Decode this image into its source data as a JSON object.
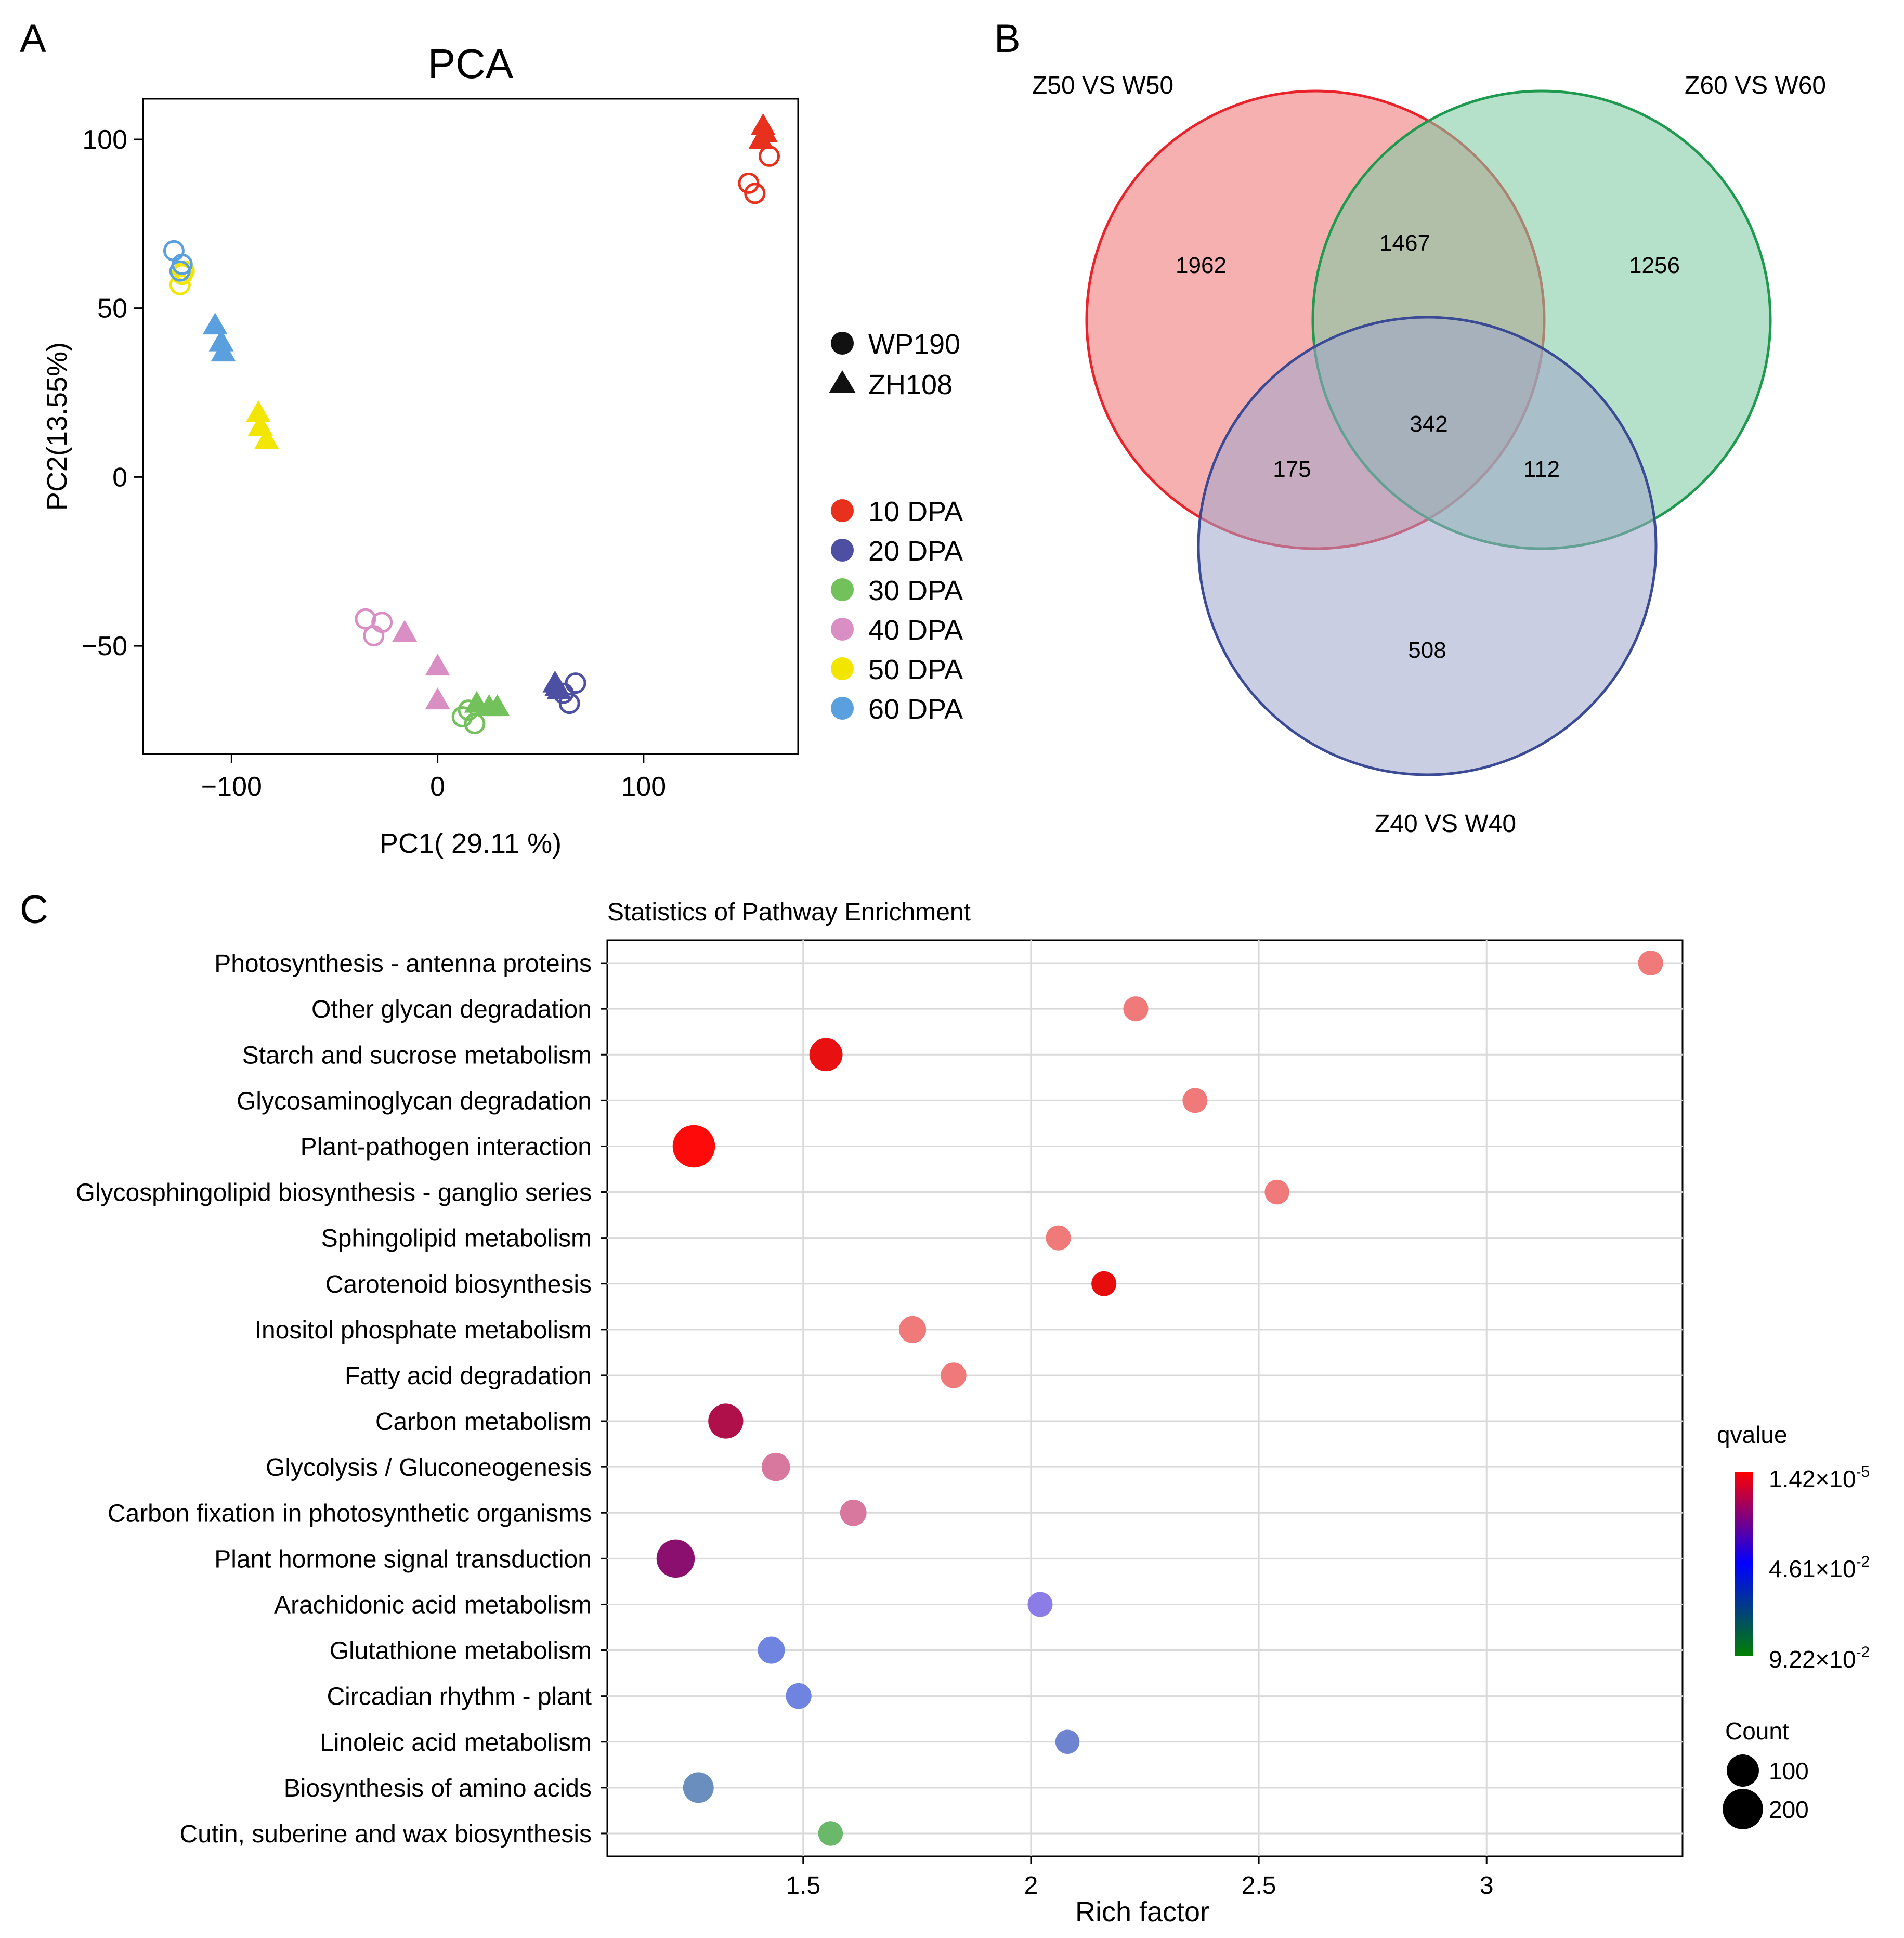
{
  "panels": {
    "a": "A",
    "b": "B",
    "c": "C"
  },
  "chart_data": [
    {
      "type": "scatter",
      "title": "PCA",
      "xlabel": "PC1( 29.11 %)",
      "ylabel": "PC2(13.55%)",
      "xlim": [
        -143,
        175
      ],
      "ylim": [
        -82,
        112
      ],
      "xticks": [
        -100,
        0,
        100
      ],
      "xtick_labels": [
        "−100",
        "0",
        "100"
      ],
      "yticks": [
        100,
        50,
        0,
        -50
      ],
      "ytick_labels": [
        "100",
        "50",
        "0",
        "−50"
      ],
      "shape_legend": [
        {
          "label": "WP190",
          "shape": "circle"
        },
        {
          "label": "ZH108",
          "shape": "triangle"
        }
      ],
      "color_legend": [
        {
          "label": "10 DPA",
          "color": "#e8311d"
        },
        {
          "label": "20 DPA",
          "color": "#4d4fa3"
        },
        {
          "label": "30 DPA",
          "color": "#72c15a"
        },
        {
          "label": "40 DPA",
          "color": "#d98fc4"
        },
        {
          "label": "50 DPA",
          "color": "#f2e600"
        },
        {
          "label": "60 DPA",
          "color": "#5a9fde"
        }
      ],
      "points": [
        {
          "x": 158,
          "y": 104,
          "group": "10 DPA",
          "shape": "triangle"
        },
        {
          "x": 157,
          "y": 100,
          "group": "10 DPA",
          "shape": "triangle"
        },
        {
          "x": 159,
          "y": 102,
          "group": "10 DPA",
          "shape": "triangle"
        },
        {
          "x": 161,
          "y": 95,
          "group": "10 DPA",
          "shape": "circle"
        },
        {
          "x": 151,
          "y": 87,
          "group": "10 DPA",
          "shape": "circle"
        },
        {
          "x": 154,
          "y": 84,
          "group": "10 DPA",
          "shape": "circle"
        },
        {
          "x": 57,
          "y": -61,
          "group": "20 DPA",
          "shape": "triangle"
        },
        {
          "x": 59,
          "y": -63,
          "group": "20 DPA",
          "shape": "triangle"
        },
        {
          "x": 58,
          "y": -62,
          "group": "20 DPA",
          "shape": "triangle"
        },
        {
          "x": 67,
          "y": -61,
          "group": "20 DPA",
          "shape": "circle"
        },
        {
          "x": 64,
          "y": -67,
          "group": "20 DPA",
          "shape": "circle"
        },
        {
          "x": 61,
          "y": -64,
          "group": "20 DPA",
          "shape": "circle"
        },
        {
          "x": 19,
          "y": -67,
          "group": "30 DPA",
          "shape": "triangle"
        },
        {
          "x": 25,
          "y": -68,
          "group": "30 DPA",
          "shape": "triangle"
        },
        {
          "x": 29,
          "y": -68,
          "group": "30 DPA",
          "shape": "triangle"
        },
        {
          "x": 15,
          "y": -69,
          "group": "30 DPA",
          "shape": "circle"
        },
        {
          "x": 12,
          "y": -71,
          "group": "30 DPA",
          "shape": "circle"
        },
        {
          "x": 18,
          "y": -73,
          "group": "30 DPA",
          "shape": "circle"
        },
        {
          "x": -16,
          "y": -46,
          "group": "40 DPA",
          "shape": "triangle"
        },
        {
          "x": 0,
          "y": -56,
          "group": "40 DPA",
          "shape": "triangle"
        },
        {
          "x": 0,
          "y": -66,
          "group": "40 DPA",
          "shape": "triangle"
        },
        {
          "x": -35,
          "y": -42,
          "group": "40 DPA",
          "shape": "circle"
        },
        {
          "x": -27,
          "y": -43,
          "group": "40 DPA",
          "shape": "circle"
        },
        {
          "x": -31,
          "y": -47,
          "group": "40 DPA",
          "shape": "circle"
        },
        {
          "x": -87,
          "y": 19,
          "group": "50 DPA",
          "shape": "triangle"
        },
        {
          "x": -86,
          "y": 15,
          "group": "50 DPA",
          "shape": "triangle"
        },
        {
          "x": -83,
          "y": 11,
          "group": "50 DPA",
          "shape": "triangle"
        },
        {
          "x": -124,
          "y": 60,
          "group": "50 DPA",
          "shape": "circle"
        },
        {
          "x": -125,
          "y": 57,
          "group": "50 DPA",
          "shape": "circle"
        },
        {
          "x": -123,
          "y": 61,
          "group": "50 DPA",
          "shape": "circle"
        },
        {
          "x": -108,
          "y": 45,
          "group": "60 DPA",
          "shape": "triangle"
        },
        {
          "x": -105,
          "y": 40,
          "group": "60 DPA",
          "shape": "triangle"
        },
        {
          "x": -104,
          "y": 37,
          "group": "60 DPA",
          "shape": "triangle"
        },
        {
          "x": -128,
          "y": 67,
          "group": "60 DPA",
          "shape": "circle"
        },
        {
          "x": -124,
          "y": 63,
          "group": "60 DPA",
          "shape": "circle"
        },
        {
          "x": -125,
          "y": 61,
          "group": "60 DPA",
          "shape": "circle"
        }
      ]
    },
    {
      "type": "venn",
      "sets": [
        {
          "name": "Z50 VS W50",
          "color": "#f08080",
          "stroke": "#e8232b"
        },
        {
          "name": "Z60 VS W60",
          "color": "#7fc9a3",
          "stroke": "#1e9a4f"
        },
        {
          "name": "Z40 VS W40",
          "color": "#9ea6cc",
          "stroke": "#3a4a95"
        }
      ],
      "regions": {
        "Z50_only": 1962,
        "Z60_only": 1256,
        "Z40_only": 508,
        "Z50_Z60": 1467,
        "Z50_Z40": 175,
        "Z60_Z40": 112,
        "all": 342
      }
    },
    {
      "type": "scatter",
      "title": "Statistics of Pathway Enrichment",
      "xlabel": "Rich factor",
      "ylabel": "",
      "xlim": [
        1.07,
        3.43
      ],
      "xticks": [
        1.5,
        2,
        2.5,
        3
      ],
      "xtick_labels": [
        "1.5",
        "2",
        "2.5",
        "3"
      ],
      "size_legend_title": "Count",
      "size_legend": [
        100,
        200
      ],
      "color_legend_title": "qvalue",
      "color_scale_labels": [
        {
          "base": "1.42×10",
          "exp": "-5"
        },
        {
          "base": "4.61×10",
          "exp": "-2"
        },
        {
          "base": "9.22×10",
          "exp": "-2"
        }
      ],
      "pathways": [
        {
          "name": "Photosynthesis - antenna proteins",
          "rich_factor": 3.36,
          "count": 40,
          "color": "#f07a7a"
        },
        {
          "name": "Other glycan degradation",
          "rich_factor": 2.23,
          "count": 40,
          "color": "#f07a7a"
        },
        {
          "name": "Starch and sucrose metabolism",
          "rich_factor": 1.55,
          "count": 110,
          "color": "#e81010"
        },
        {
          "name": "Glycosaminoglycan degradation",
          "rich_factor": 2.36,
          "count": 40,
          "color": "#f07a7a"
        },
        {
          "name": "Plant-pathogen interaction",
          "rich_factor": 1.26,
          "count": 230,
          "color": "#ff0a0a"
        },
        {
          "name": "Glycosphingolipid biosynthesis - ganglio series",
          "rich_factor": 2.54,
          "count": 38,
          "color": "#f07a7a"
        },
        {
          "name": "Sphingolipid metabolism",
          "rich_factor": 2.06,
          "count": 40,
          "color": "#f07a7a"
        },
        {
          "name": "Carotenoid biosynthesis",
          "rich_factor": 2.16,
          "count": 40,
          "color": "#e80d0d"
        },
        {
          "name": "Inositol phosphate metabolism",
          "rich_factor": 1.74,
          "count": 55,
          "color": "#f07a7a"
        },
        {
          "name": "Fatty acid degradation",
          "rich_factor": 1.83,
          "count": 45,
          "color": "#f07a7a"
        },
        {
          "name": "Carbon metabolism",
          "rich_factor": 1.33,
          "count": 130,
          "color": "#b0104a"
        },
        {
          "name": "Glycolysis / Gluconeogenesis",
          "rich_factor": 1.44,
          "count": 65,
          "color": "#d9789f"
        },
        {
          "name": "Carbon fixation in photosynthetic organisms",
          "rich_factor": 1.61,
          "count": 50,
          "color": "#d9789f"
        },
        {
          "name": "Plant hormone signal transduction",
          "rich_factor": 1.22,
          "count": 170,
          "color": "#8b0f6e"
        },
        {
          "name": "Arachidonic acid metabolism",
          "rich_factor": 2.02,
          "count": 40,
          "color": "#8c7de6"
        },
        {
          "name": "Glutathione metabolism",
          "rich_factor": 1.43,
          "count": 55,
          "color": "#6f84e0"
        },
        {
          "name": "Circadian rhythm - plant",
          "rich_factor": 1.49,
          "count": 45,
          "color": "#6f84e0"
        },
        {
          "name": "Linoleic acid metabolism",
          "rich_factor": 2.08,
          "count": 35,
          "color": "#6f84d0"
        },
        {
          "name": "Biosynthesis of amino acids",
          "rich_factor": 1.27,
          "count": 85,
          "color": "#6a8fbf"
        },
        {
          "name": "Cutin, suberine and wax biosynthesis",
          "rich_factor": 1.56,
          "count": 38,
          "color": "#6ab86a"
        }
      ]
    }
  ]
}
